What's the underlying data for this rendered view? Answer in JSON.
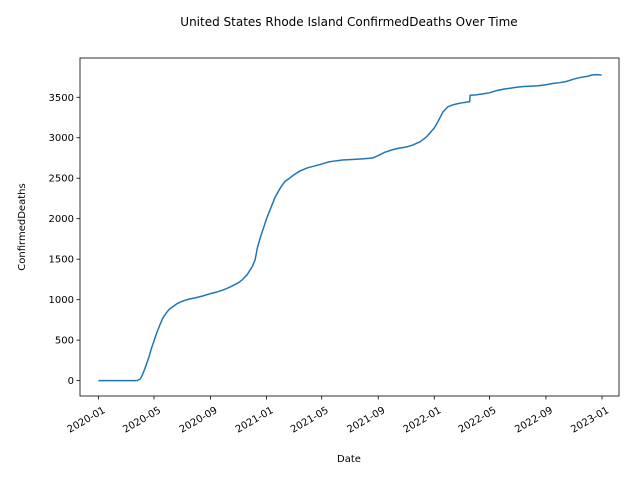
{
  "chart_data": {
    "type": "line",
    "title": "United States Rhode Island ConfirmedDeaths Over Time",
    "xlabel": "Date",
    "ylabel": "ConfirmedDeaths",
    "grid": false,
    "legend": "none",
    "color": "#1f77b4",
    "xlim": [
      "2019-11-22",
      "2023-02-07"
    ],
    "ylim": [
      -190,
      3985
    ],
    "x_ticks": [
      {
        "value": "2020-01-01",
        "label": "2020-01"
      },
      {
        "value": "2020-05-01",
        "label": "2020-05"
      },
      {
        "value": "2020-09-01",
        "label": "2020-09"
      },
      {
        "value": "2021-01-01",
        "label": "2021-01"
      },
      {
        "value": "2021-05-01",
        "label": "2021-05"
      },
      {
        "value": "2021-09-01",
        "label": "2021-09"
      },
      {
        "value": "2022-01-01",
        "label": "2022-01"
      },
      {
        "value": "2022-05-01",
        "label": "2022-05"
      },
      {
        "value": "2022-09-01",
        "label": "2022-09"
      },
      {
        "value": "2023-01-01",
        "label": "2023-01"
      }
    ],
    "y_ticks": [
      0,
      500,
      1000,
      1500,
      2000,
      2500,
      3000,
      3500
    ],
    "series": [
      {
        "name": "",
        "points": [
          [
            "2020-01-01",
            0
          ],
          [
            "2020-02-01",
            0
          ],
          [
            "2020-03-01",
            0
          ],
          [
            "2020-03-25",
            0
          ],
          [
            "2020-04-01",
            20
          ],
          [
            "2020-04-05",
            60
          ],
          [
            "2020-04-10",
            130
          ],
          [
            "2020-04-15",
            210
          ],
          [
            "2020-04-20",
            290
          ],
          [
            "2020-04-25",
            390
          ],
          [
            "2020-05-01",
            490
          ],
          [
            "2020-05-07",
            590
          ],
          [
            "2020-05-14",
            690
          ],
          [
            "2020-05-20",
            770
          ],
          [
            "2020-05-27",
            830
          ],
          [
            "2020-06-03",
            880
          ],
          [
            "2020-06-10",
            910
          ],
          [
            "2020-06-20",
            950
          ],
          [
            "2020-07-01",
            980
          ],
          [
            "2020-07-15",
            1005
          ],
          [
            "2020-08-01",
            1025
          ],
          [
            "2020-08-15",
            1045
          ],
          [
            "2020-09-01",
            1075
          ],
          [
            "2020-09-15",
            1095
          ],
          [
            "2020-10-01",
            1125
          ],
          [
            "2020-10-15",
            1160
          ],
          [
            "2020-11-01",
            1210
          ],
          [
            "2020-11-10",
            1250
          ],
          [
            "2020-11-20",
            1310
          ],
          [
            "2020-12-01",
            1410
          ],
          [
            "2020-12-07",
            1490
          ],
          [
            "2020-12-12",
            1640
          ],
          [
            "2020-12-18",
            1760
          ],
          [
            "2021-01-01",
            2000
          ],
          [
            "2021-01-10",
            2130
          ],
          [
            "2021-01-20",
            2270
          ],
          [
            "2021-02-01",
            2390
          ],
          [
            "2021-02-10",
            2460
          ],
          [
            "2021-02-20",
            2500
          ],
          [
            "2021-03-01",
            2540
          ],
          [
            "2021-03-15",
            2590
          ],
          [
            "2021-04-01",
            2630
          ],
          [
            "2021-04-15",
            2650
          ],
          [
            "2021-05-01",
            2675
          ],
          [
            "2021-05-15",
            2700
          ],
          [
            "2021-06-01",
            2715
          ],
          [
            "2021-06-15",
            2725
          ],
          [
            "2021-07-01",
            2730
          ],
          [
            "2021-07-15",
            2735
          ],
          [
            "2021-08-01",
            2740
          ],
          [
            "2021-08-20",
            2750
          ],
          [
            "2021-09-01",
            2780
          ],
          [
            "2021-09-15",
            2820
          ],
          [
            "2021-10-01",
            2850
          ],
          [
            "2021-10-15",
            2870
          ],
          [
            "2021-11-01",
            2885
          ],
          [
            "2021-11-15",
            2910
          ],
          [
            "2021-12-01",
            2950
          ],
          [
            "2021-12-15",
            3010
          ],
          [
            "2022-01-01",
            3120
          ],
          [
            "2022-01-10",
            3210
          ],
          [
            "2022-01-20",
            3320
          ],
          [
            "2022-01-30",
            3380
          ],
          [
            "2022-02-10",
            3405
          ],
          [
            "2022-02-20",
            3420
          ],
          [
            "2022-03-01",
            3430
          ],
          [
            "2022-03-19",
            3445
          ],
          [
            "2022-03-20",
            3525
          ],
          [
            "2022-04-01",
            3530
          ],
          [
            "2022-04-15",
            3540
          ],
          [
            "2022-05-01",
            3555
          ],
          [
            "2022-05-15",
            3580
          ],
          [
            "2022-06-01",
            3600
          ],
          [
            "2022-06-15",
            3612
          ],
          [
            "2022-07-01",
            3625
          ],
          [
            "2022-07-15",
            3633
          ],
          [
            "2022-08-01",
            3638
          ],
          [
            "2022-08-15",
            3642
          ],
          [
            "2022-09-01",
            3655
          ],
          [
            "2022-09-15",
            3670
          ],
          [
            "2022-10-01",
            3680
          ],
          [
            "2022-10-15",
            3695
          ],
          [
            "2022-11-01",
            3725
          ],
          [
            "2022-11-15",
            3745
          ],
          [
            "2022-12-01",
            3760
          ],
          [
            "2022-12-10",
            3775
          ],
          [
            "2022-12-20",
            3780
          ],
          [
            "2022-12-31",
            3775
          ]
        ]
      }
    ]
  }
}
